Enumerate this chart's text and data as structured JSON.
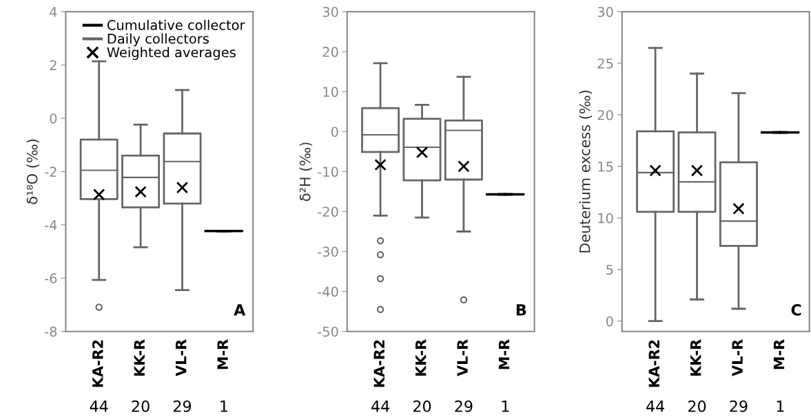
{
  "chart_data": [
    {
      "type": "box",
      "ylabel": "δ¹⁸O (‰)",
      "categories": [
        "KA-R2",
        "KK-R",
        "VL-R",
        "M-R"
      ],
      "ylim": [
        -8,
        4
      ],
      "yticks": [
        -8,
        -6,
        -4,
        -2,
        0,
        2,
        4
      ],
      "grid": false,
      "legend": "top right",
      "annotations": [
        "A",
        "44",
        "20",
        "29",
        "1"
      ],
      "series": [
        {
          "name": "Cumulative collector",
          "color": "#000000",
          "boxes": [
            null,
            null,
            null,
            {
              "low": -4.23,
              "q1": -4.23,
              "median": -4.23,
              "q3": -4.23,
              "high": -4.23
            }
          ]
        },
        {
          "name": "Daily collectors",
          "color": "#666666",
          "boxes": [
            {
              "low": -6.07,
              "q1": -3.03,
              "median": -1.95,
              "q3": -0.8,
              "high": 2.14,
              "outliers": [
                -7.09
              ]
            },
            {
              "low": -4.84,
              "q1": -3.34,
              "median": -2.22,
              "q3": -1.4,
              "high": -0.24
            },
            {
              "low": -6.45,
              "q1": -3.2,
              "median": -1.62,
              "q3": -0.57,
              "high": 1.06
            },
            null
          ]
        },
        {
          "name": "Weighted averages",
          "type": "scatter",
          "marker": "cross",
          "color": "#000000",
          "values": [
            -2.86,
            -2.76,
            -2.6,
            null
          ]
        }
      ]
    },
    {
      "type": "box",
      "ylabel": "δ²H (‰)",
      "categories": [
        "KA-R2",
        "KK-R",
        "VL-R",
        "M-R"
      ],
      "ylim": [
        -50,
        30
      ],
      "yticks": [
        -50,
        -40,
        -30,
        -20,
        -10,
        0,
        10,
        20,
        30
      ],
      "grid": false,
      "annotations": [
        "B",
        "44",
        "20",
        "29",
        "1"
      ],
      "series": [
        {
          "color": "#000000",
          "boxes": [
            null,
            null,
            null,
            {
              "low": -15.7,
              "q1": -15.7,
              "median": -15.7,
              "q3": -15.7,
              "high": -15.7
            }
          ]
        },
        {
          "color": "#666666",
          "boxes": [
            {
              "low": -21,
              "q1": -5.1,
              "median": -0.8,
              "q3": 5.9,
              "high": 17.1,
              "outliers": [
                -27.3,
                -30.8,
                -36.8,
                -44.5
              ]
            },
            {
              "low": -21.5,
              "q1": -12.2,
              "median": -3.9,
              "q3": 3.2,
              "high": 6.7
            },
            {
              "low": -25,
              "q1": -12,
              "median": 0.3,
              "q3": 2.8,
              "high": 13.7,
              "outliers": [
                -42.1
              ]
            },
            null
          ]
        },
        {
          "type": "scatter",
          "marker": "cross",
          "color": "#000000",
          "values": [
            -8.3,
            -5.2,
            -8.7,
            null
          ]
        }
      ]
    },
    {
      "type": "box",
      "ylabel": "Deuterium excess (‰)",
      "categories": [
        "KA-R2",
        "KK-R",
        "VL-R",
        "M-R"
      ],
      "ylim": [
        -1,
        30
      ],
      "yticks": [
        0,
        5,
        10,
        15,
        20,
        25,
        30
      ],
      "grid": false,
      "annotations": [
        "C",
        "44",
        "20",
        "29",
        "1"
      ],
      "series": [
        {
          "color": "#000000",
          "boxes": [
            null,
            null,
            null,
            {
              "low": 18.3,
              "q1": 18.3,
              "median": 18.3,
              "q3": 18.3,
              "high": 18.3
            }
          ]
        },
        {
          "color": "#666666",
          "boxes": [
            {
              "low": 0,
              "q1": 10.6,
              "median": 14.4,
              "q3": 18.4,
              "high": 26.5
            },
            {
              "low": 2.1,
              "q1": 10.6,
              "median": 13.5,
              "q3": 18.3,
              "high": 24.0
            },
            {
              "low": 1.2,
              "q1": 7.3,
              "median": 9.7,
              "q3": 15.4,
              "high": 22.1
            },
            null
          ]
        },
        {
          "type": "scatter",
          "marker": "cross",
          "color": "#000000",
          "values": [
            14.6,
            14.6,
            10.9,
            null
          ]
        }
      ]
    }
  ]
}
